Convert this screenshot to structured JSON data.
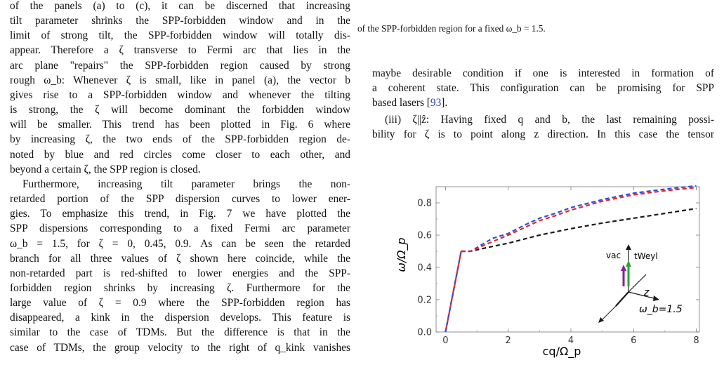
{
  "left_column": {
    "lines": [
      "of the panels (a) to (c), it can be discerned that increasing",
      "tilt parameter shrinks the SPP-forbidden window and in the",
      "limit of strong tilt, the SPP-forbidden window will totally dis-",
      "appear. Therefore a ζ transverse to Fermi arc that lies in the",
      "arc plane \"repairs\" the SPP-forbidden region caused by strong",
      "rough ω_b: Whenever ζ is small, like in panel (a), the vector b",
      "gives rise to a SPP-forbidden window and whenever the tilting",
      "is strong, the ζ will become dominant the forbidden window",
      "will be smaller. This trend has been plotted in Fig. 6 where",
      "by increasing ζ, the two ends of the SPP-forbidden region de-",
      "noted by blue and red circles come closer to each other, and",
      "beyond a certain ζ, the SPP region is closed.",
      "Furthermore, increasing tilt parameter brings the non-",
      "retarded portion of the SPP dispersion curves to lower ener-",
      "gies. To emphasize this trend, in Fig. 7 we have plotted the",
      "SPP dispersions corresponding to a fixed Fermi arc parameter",
      "ω_b = 1.5, for ζ = 0, 0.45, 0.9. As can be seen the retarded",
      "branch for all three values of ζ shown here coincide, while the",
      "non-retarded part is red-shifted to lower energies and the SPP-",
      "forbidden region shrinks by increasing ζ. Furthermore for the",
      "large value of ζ = 0.9 where the SPP-forbidden region has",
      "disappeared, a kink in the dispersion develops. This feature is",
      "similar to the case of TDMs. But the difference is that in the",
      "case of TDMs, the group velocity to the right of q_kink vanishes"
    ]
  },
  "right_column": {
    "caption_line": "of the SPP-forbidden region for a fixed ω_b = 1.5.",
    "para1": [
      "maybe desirable condition if one is interested in formation of",
      "a coherent state. This configuration can be promising for SPP",
      "based lasers [93]."
    ],
    "para2": [
      "(iii) ζ||ẑ: Having fixed q and b, the last remaining possi-",
      "bility for ζ is to point along z direction. In this case the tensor"
    ]
  },
  "colors": {
    "red": "#e8262a",
    "blue": "#2d4ee0",
    "black": "#1a1a1a",
    "green": "#2aa53a",
    "purple": "#8a1e9b",
    "citation": "#2a3fb5"
  },
  "chart_data": {
    "type": "line",
    "xlabel": "cq/Ω_p",
    "ylabel": "ω/Ω_p",
    "xlim": [
      -0.3,
      8.1
    ],
    "ylim": [
      0.0,
      0.9
    ],
    "xticks": [
      "0",
      "2",
      "4",
      "6",
      "8"
    ],
    "yticks": [
      "0.0",
      "0.2",
      "0.4",
      "0.6",
      "0.8"
    ],
    "retarded": {
      "x": [
        0.0,
        0.1,
        0.2,
        0.3,
        0.4,
        0.5
      ],
      "y": [
        0.0,
        0.1,
        0.2,
        0.3,
        0.4,
        0.5
      ]
    },
    "series": [
      {
        "color": "black",
        "x": [
          0.5,
          0.6,
          0.8,
          1.5,
          2,
          3,
          4,
          5,
          6,
          7,
          8
        ],
        "y": [
          0.5,
          0.5,
          0.5,
          0.53,
          0.55,
          0.6,
          0.64,
          0.675,
          0.705,
          0.735,
          0.765
        ]
      },
      {
        "color": "blue",
        "x": [
          0.5,
          0.6,
          0.8,
          1.5,
          2,
          2.5,
          3,
          3.5,
          4,
          5,
          6,
          7,
          8
        ],
        "y": [
          0.5,
          0.5,
          0.5,
          0.58,
          0.61,
          0.66,
          0.705,
          0.735,
          0.77,
          0.82,
          0.86,
          0.885,
          0.905
        ]
      },
      {
        "color": "red",
        "x": [
          0.5,
          0.6,
          0.8,
          1.5,
          2,
          2.5,
          3,
          3.5,
          4,
          5,
          6,
          7,
          8
        ],
        "y": [
          0.5,
          0.5,
          0.5,
          0.56,
          0.6,
          0.645,
          0.69,
          0.72,
          0.755,
          0.81,
          0.85,
          0.875,
          0.895
        ]
      }
    ],
    "annotations": {
      "vac": "vac",
      "tweyl": "tWeyl",
      "z": "z",
      "omega_b": "ω_b=1.5"
    }
  }
}
